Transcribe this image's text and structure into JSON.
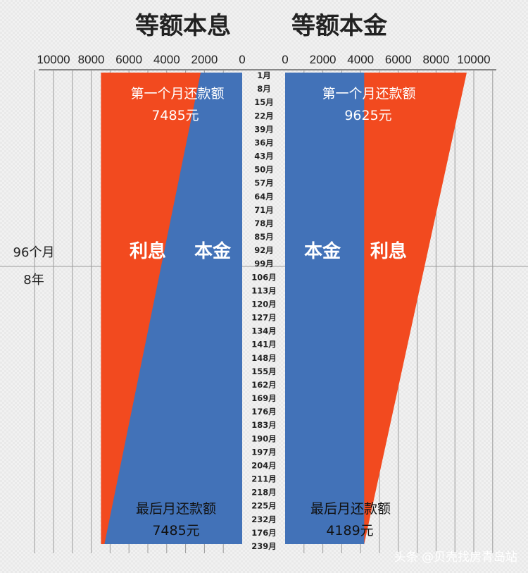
{
  "chart_data": [
    {
      "type": "area",
      "title": "等额本息",
      "orientation": "horizontal-reversed",
      "xlim": [
        0,
        11000
      ],
      "x_ticks": [
        "10000",
        "8000",
        "6000",
        "4000",
        "2000",
        "0"
      ],
      "series": [
        {
          "name": "本金",
          "color": "#4272b8",
          "values_start": 2200,
          "values_end": 7300
        },
        {
          "name": "利息",
          "color": "#f24a1f",
          "values_start": 5285,
          "values_end": 185
        }
      ],
      "total_payment": 7485,
      "segment_labels": {
        "interest": "利息",
        "principal": "本金"
      },
      "first_payment_label": "第一个月还款额",
      "first_payment_value": "7485元",
      "last_payment_label": "最后月还款额",
      "last_payment_value": "7485元"
    },
    {
      "type": "area",
      "title": "等额本金",
      "orientation": "horizontal",
      "xlim": [
        0,
        11000
      ],
      "x_ticks": [
        "0",
        "2000",
        "4000",
        "6000",
        "8000",
        "10000"
      ],
      "series": [
        {
          "name": "本金",
          "color": "#4272b8",
          "values_start": 4190,
          "values_end": 4190
        },
        {
          "name": "利息",
          "color": "#f24a1f",
          "values_start": 5435,
          "values_end": 0
        }
      ],
      "segment_labels": {
        "principal": "本金",
        "interest": "利息"
      },
      "first_payment_label": "第一个月还款额",
      "first_payment_value": "9625元",
      "last_payment_label": "最后月还款额",
      "last_payment_value": "4189元"
    }
  ],
  "months": [
    "1月",
    "8月",
    "15月",
    "22月",
    "39月",
    "36月",
    "43月",
    "50月",
    "57月",
    "64月",
    "71月",
    "78月",
    "85月",
    "92月",
    "99月",
    "106月",
    "113月",
    "120月",
    "127月",
    "134月",
    "141月",
    "148月",
    "155月",
    "162月",
    "169月",
    "176月",
    "183月",
    "190月",
    "197月",
    "204月",
    "211月",
    "218月",
    "225月",
    "232月",
    "176月",
    "239月"
  ],
  "marker": {
    "months": "96个月",
    "years": "8年"
  },
  "watermark": "头条 @贝壳找房青岛站",
  "colors": {
    "principal": "#4272b8",
    "interest": "#f24a1f",
    "gridline": "#9a9a9a"
  }
}
